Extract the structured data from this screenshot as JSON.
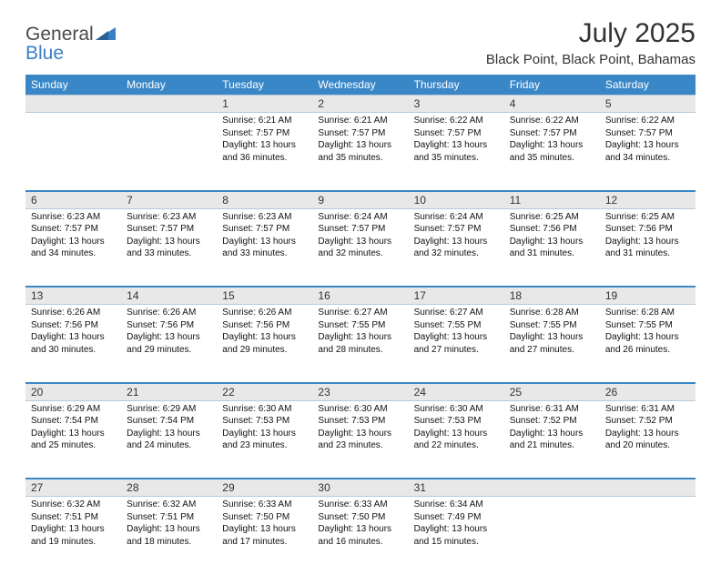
{
  "logo": {
    "word1": "General",
    "word2": "Blue"
  },
  "title": "July 2025",
  "location": "Black Point, Black Point, Bahamas",
  "weekdays": [
    "Sunday",
    "Monday",
    "Tuesday",
    "Wednesday",
    "Thursday",
    "Friday",
    "Saturday"
  ],
  "colors": {
    "header_bg": "#3a87c7",
    "header_text": "#ffffff",
    "daynum_bg": "#e8e8e8",
    "rule": "#3a87c7",
    "logo_gray": "#4a4a4a",
    "logo_blue": "#3a7fc4"
  },
  "labels": {
    "sunrise": "Sunrise:",
    "sunset": "Sunset:",
    "daylight": "Daylight:"
  },
  "weeks": [
    [
      null,
      null,
      {
        "n": "1",
        "sunrise": "6:21 AM",
        "sunset": "7:57 PM",
        "daylight": "13 hours and 36 minutes."
      },
      {
        "n": "2",
        "sunrise": "6:21 AM",
        "sunset": "7:57 PM",
        "daylight": "13 hours and 35 minutes."
      },
      {
        "n": "3",
        "sunrise": "6:22 AM",
        "sunset": "7:57 PM",
        "daylight": "13 hours and 35 minutes."
      },
      {
        "n": "4",
        "sunrise": "6:22 AM",
        "sunset": "7:57 PM",
        "daylight": "13 hours and 35 minutes."
      },
      {
        "n": "5",
        "sunrise": "6:22 AM",
        "sunset": "7:57 PM",
        "daylight": "13 hours and 34 minutes."
      }
    ],
    [
      {
        "n": "6",
        "sunrise": "6:23 AM",
        "sunset": "7:57 PM",
        "daylight": "13 hours and 34 minutes."
      },
      {
        "n": "7",
        "sunrise": "6:23 AM",
        "sunset": "7:57 PM",
        "daylight": "13 hours and 33 minutes."
      },
      {
        "n": "8",
        "sunrise": "6:23 AM",
        "sunset": "7:57 PM",
        "daylight": "13 hours and 33 minutes."
      },
      {
        "n": "9",
        "sunrise": "6:24 AM",
        "sunset": "7:57 PM",
        "daylight": "13 hours and 32 minutes."
      },
      {
        "n": "10",
        "sunrise": "6:24 AM",
        "sunset": "7:57 PM",
        "daylight": "13 hours and 32 minutes."
      },
      {
        "n": "11",
        "sunrise": "6:25 AM",
        "sunset": "7:56 PM",
        "daylight": "13 hours and 31 minutes."
      },
      {
        "n": "12",
        "sunrise": "6:25 AM",
        "sunset": "7:56 PM",
        "daylight": "13 hours and 31 minutes."
      }
    ],
    [
      {
        "n": "13",
        "sunrise": "6:26 AM",
        "sunset": "7:56 PM",
        "daylight": "13 hours and 30 minutes."
      },
      {
        "n": "14",
        "sunrise": "6:26 AM",
        "sunset": "7:56 PM",
        "daylight": "13 hours and 29 minutes."
      },
      {
        "n": "15",
        "sunrise": "6:26 AM",
        "sunset": "7:56 PM",
        "daylight": "13 hours and 29 minutes."
      },
      {
        "n": "16",
        "sunrise": "6:27 AM",
        "sunset": "7:55 PM",
        "daylight": "13 hours and 28 minutes."
      },
      {
        "n": "17",
        "sunrise": "6:27 AM",
        "sunset": "7:55 PM",
        "daylight": "13 hours and 27 minutes."
      },
      {
        "n": "18",
        "sunrise": "6:28 AM",
        "sunset": "7:55 PM",
        "daylight": "13 hours and 27 minutes."
      },
      {
        "n": "19",
        "sunrise": "6:28 AM",
        "sunset": "7:55 PM",
        "daylight": "13 hours and 26 minutes."
      }
    ],
    [
      {
        "n": "20",
        "sunrise": "6:29 AM",
        "sunset": "7:54 PM",
        "daylight": "13 hours and 25 minutes."
      },
      {
        "n": "21",
        "sunrise": "6:29 AM",
        "sunset": "7:54 PM",
        "daylight": "13 hours and 24 minutes."
      },
      {
        "n": "22",
        "sunrise": "6:30 AM",
        "sunset": "7:53 PM",
        "daylight": "13 hours and 23 minutes."
      },
      {
        "n": "23",
        "sunrise": "6:30 AM",
        "sunset": "7:53 PM",
        "daylight": "13 hours and 23 minutes."
      },
      {
        "n": "24",
        "sunrise": "6:30 AM",
        "sunset": "7:53 PM",
        "daylight": "13 hours and 22 minutes."
      },
      {
        "n": "25",
        "sunrise": "6:31 AM",
        "sunset": "7:52 PM",
        "daylight": "13 hours and 21 minutes."
      },
      {
        "n": "26",
        "sunrise": "6:31 AM",
        "sunset": "7:52 PM",
        "daylight": "13 hours and 20 minutes."
      }
    ],
    [
      {
        "n": "27",
        "sunrise": "6:32 AM",
        "sunset": "7:51 PM",
        "daylight": "13 hours and 19 minutes."
      },
      {
        "n": "28",
        "sunrise": "6:32 AM",
        "sunset": "7:51 PM",
        "daylight": "13 hours and 18 minutes."
      },
      {
        "n": "29",
        "sunrise": "6:33 AM",
        "sunset": "7:50 PM",
        "daylight": "13 hours and 17 minutes."
      },
      {
        "n": "30",
        "sunrise": "6:33 AM",
        "sunset": "7:50 PM",
        "daylight": "13 hours and 16 minutes."
      },
      {
        "n": "31",
        "sunrise": "6:34 AM",
        "sunset": "7:49 PM",
        "daylight": "13 hours and 15 minutes."
      },
      null,
      null
    ]
  ]
}
